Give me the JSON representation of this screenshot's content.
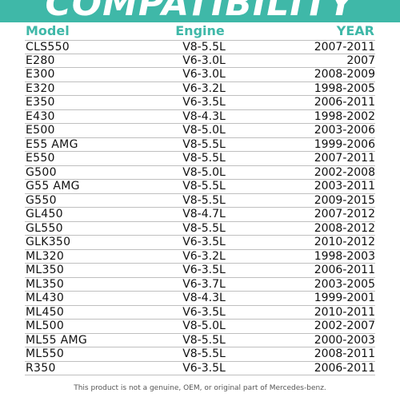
{
  "banner": {
    "title": "COMPATIBILITY",
    "color": "#3fb8a8"
  },
  "header": {
    "model": "Model",
    "engine": "Engine",
    "year": "YEAR"
  },
  "rows": [
    {
      "model": "CLS550",
      "engine": "V8-5.5L",
      "year": "2007-2011"
    },
    {
      "model": "E280",
      "engine": "V6-3.0L",
      "year": "2007"
    },
    {
      "model": "E300",
      "engine": "V6-3.0L",
      "year": "2008-2009"
    },
    {
      "model": "E320",
      "engine": "V6-3.2L",
      "year": "1998-2005"
    },
    {
      "model": "E350",
      "engine": "V6-3.5L",
      "year": "2006-2011"
    },
    {
      "model": "E430",
      "engine": "V8-4.3L",
      "year": "1998-2002"
    },
    {
      "model": "E500",
      "engine": "V8-5.0L",
      "year": "2003-2006"
    },
    {
      "model": "E55 AMG",
      "engine": "V8-5.5L",
      "year": "1999-2006"
    },
    {
      "model": "E550",
      "engine": "V8-5.5L",
      "year": "2007-2011"
    },
    {
      "model": "G500",
      "engine": "V8-5.0L",
      "year": "2002-2008"
    },
    {
      "model": "G55 AMG",
      "engine": "V8-5.5L",
      "year": "2003-2011"
    },
    {
      "model": "G550",
      "engine": "V8-5.5L",
      "year": "2009-2015"
    },
    {
      "model": "GL450",
      "engine": "V8-4.7L",
      "year": "2007-2012"
    },
    {
      "model": "GL550",
      "engine": "V8-5.5L",
      "year": "2008-2012"
    },
    {
      "model": "GLK350",
      "engine": "V6-3.5L",
      "year": "2010-2012"
    },
    {
      "model": "ML320",
      "engine": "V6-3.2L",
      "year": "1998-2003"
    },
    {
      "model": "ML350",
      "engine": "V6-3.5L",
      "year": "2006-2011"
    },
    {
      "model": "ML350",
      "engine": "V6-3.7L",
      "year": "2003-2005"
    },
    {
      "model": "ML430",
      "engine": "V8-4.3L",
      "year": "1999-2001"
    },
    {
      "model": "ML450",
      "engine": "V6-3.5L",
      "year": "2010-2011"
    },
    {
      "model": "ML500",
      "engine": "V8-5.0L",
      "year": "2002-2007"
    },
    {
      "model": "ML55 AMG",
      "engine": "V8-5.5L",
      "year": "2000-2003"
    },
    {
      "model": "ML550",
      "engine": "V8-5.5L",
      "year": "2008-2011"
    },
    {
      "model": "R350",
      "engine": "V6-3.5L",
      "year": "2006-2011"
    }
  ],
  "footer": {
    "text": "This product is not a genuine, OEM, or original part of Mercedes-benz."
  }
}
